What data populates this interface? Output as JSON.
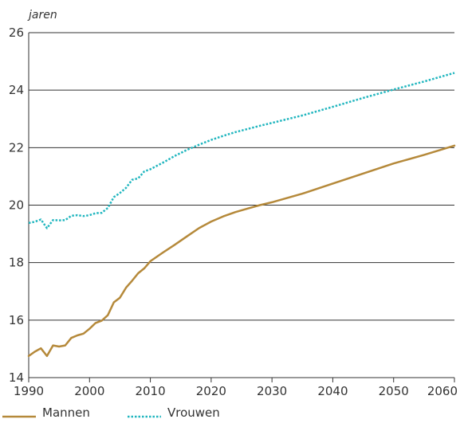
{
  "chart_data": {
    "type": "line",
    "title": "",
    "xlabel": "",
    "ylabel": "jaren",
    "xlim": [
      1990,
      2060
    ],
    "ylim": [
      14,
      26
    ],
    "xticks": [
      1990,
      2000,
      2010,
      2020,
      2030,
      2040,
      2050,
      2060
    ],
    "yticks": [
      14,
      16,
      18,
      20,
      22,
      24,
      26
    ],
    "grid": "horizontal",
    "legend_position": "bottom",
    "series": [
      {
        "name": "Mannen",
        "color": "#b5893a",
        "style": "solid",
        "x": [
          1990,
          1991,
          1992,
          1993,
          1994,
          1995,
          1996,
          1997,
          1998,
          1999,
          2000,
          2001,
          2002,
          2003,
          2004,
          2005,
          2006,
          2007,
          2008,
          2009,
          2010,
          2012,
          2014,
          2016,
          2018,
          2020,
          2022,
          2024,
          2026,
          2028,
          2030,
          2035,
          2040,
          2045,
          2050,
          2055,
          2060
        ],
        "y": [
          14.75,
          14.9,
          15.02,
          14.75,
          15.12,
          15.08,
          15.12,
          15.38,
          15.47,
          15.53,
          15.7,
          15.9,
          15.98,
          16.17,
          16.62,
          16.78,
          17.13,
          17.37,
          17.63,
          17.8,
          18.05,
          18.34,
          18.62,
          18.91,
          19.2,
          19.43,
          19.61,
          19.76,
          19.88,
          20.0,
          20.1,
          20.4,
          20.75,
          21.1,
          21.45,
          21.75,
          22.07
        ]
      },
      {
        "name": "Vrouwen",
        "color": "#21b6bf",
        "style": "dotted",
        "x": [
          1990,
          1991,
          1992,
          1993,
          1994,
          1995,
          1996,
          1997,
          1998,
          1999,
          2000,
          2001,
          2002,
          2003,
          2004,
          2005,
          2006,
          2007,
          2008,
          2009,
          2010,
          2012,
          2014,
          2016,
          2018,
          2020,
          2022,
          2024,
          2026,
          2028,
          2030,
          2035,
          2040,
          2045,
          2050,
          2055,
          2060
        ],
        "y": [
          19.38,
          19.42,
          19.5,
          19.2,
          19.48,
          19.47,
          19.48,
          19.63,
          19.65,
          19.62,
          19.65,
          19.72,
          19.73,
          19.9,
          20.28,
          20.42,
          20.6,
          20.88,
          20.93,
          21.17,
          21.25,
          21.47,
          21.71,
          21.92,
          22.1,
          22.27,
          22.41,
          22.54,
          22.65,
          22.76,
          22.86,
          23.12,
          23.42,
          23.73,
          24.02,
          24.3,
          24.6
        ]
      }
    ]
  }
}
